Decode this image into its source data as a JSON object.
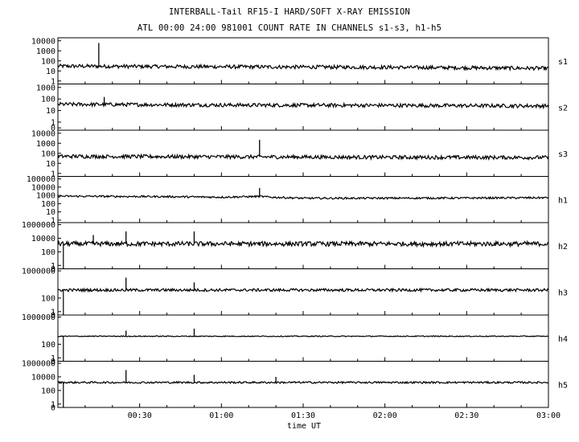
{
  "header": {
    "title": "INTERBALL-Tail RF15-I HARD/SOFT X-RAY EMISSION",
    "subtitle": "ATL 00:00 24:00 981001  COUNT RATE IN CHANNELS s1-s3, h1-h5"
  },
  "chart_data": {
    "type": "line",
    "xlabel": "time UT",
    "x_range_minutes": [
      0,
      180
    ],
    "x_ticks": [
      {
        "label": "00:30",
        "minutes": 30
      },
      {
        "label": "01:00",
        "minutes": 60
      },
      {
        "label": "01:30",
        "minutes": 90
      },
      {
        "label": "02:00",
        "minutes": 120
      },
      {
        "label": "02:30",
        "minutes": 150
      },
      {
        "label": "03:00",
        "minutes": 180
      }
    ],
    "y_scale": "log",
    "panels": [
      {
        "name": "s1",
        "ylim_decades": [
          -0.3,
          4.3
        ],
        "ytick_labels": [
          "10000",
          "1000",
          "100",
          "10",
          "1"
        ],
        "ytick_decades": [
          4,
          3,
          2,
          1,
          0
        ],
        "baseline": [
          [
            0,
            30
          ],
          [
            60,
            26
          ],
          [
            120,
            23
          ],
          [
            180,
            18
          ]
        ],
        "noise": 0.04,
        "spikes": [
          {
            "t": 15,
            "v": 6000
          }
        ]
      },
      {
        "name": "s2",
        "ylim_decades": [
          -0.7,
          3.3
        ],
        "ytick_labels": [
          "1000",
          "100",
          "10",
          "1",
          "0"
        ],
        "ytick_decades": [
          3,
          2,
          1,
          0,
          -0.5
        ],
        "baseline": [
          [
            0,
            35
          ],
          [
            60,
            30
          ],
          [
            120,
            28
          ],
          [
            180,
            25
          ]
        ],
        "noise": 0.04,
        "spikes": [
          {
            "t": 17,
            "v": 150
          }
        ]
      },
      {
        "name": "s3",
        "ylim_decades": [
          -0.3,
          4.3
        ],
        "ytick_labels": [
          "10000",
          "1000",
          "100",
          "10",
          "1"
        ],
        "ytick_decades": [
          4,
          3,
          2,
          1,
          0
        ],
        "baseline": [
          [
            0,
            50
          ],
          [
            60,
            45
          ],
          [
            120,
            40
          ],
          [
            180,
            38
          ]
        ],
        "noise": 0.04,
        "spikes": [
          {
            "t": 74,
            "v": 2200
          }
        ]
      },
      {
        "name": "h1",
        "ylim_decades": [
          -0.3,
          5.3
        ],
        "ytick_labels": [
          "100000",
          "10000",
          "1000",
          "100",
          "10",
          "1"
        ],
        "ytick_decades": [
          5,
          4,
          3,
          2,
          1,
          0
        ],
        "baseline": [
          [
            0,
            800
          ],
          [
            40,
            700
          ],
          [
            60,
            600
          ],
          [
            74,
            750
          ],
          [
            78,
            600
          ],
          [
            90,
            450
          ],
          [
            120,
            460
          ],
          [
            150,
            480
          ],
          [
            180,
            520
          ]
        ],
        "noise": 0.02,
        "spikes": [
          {
            "t": 74,
            "v": 8000
          }
        ]
      },
      {
        "name": "h2",
        "ylim_decades": [
          -0.5,
          6.3
        ],
        "ytick_labels": [
          "1000000",
          "10000",
          "100",
          "1",
          "0"
        ],
        "ytick_decades": [
          6,
          4,
          2,
          0,
          -0.5
        ],
        "baseline": [
          [
            0,
            1500
          ],
          [
            180,
            1500
          ]
        ],
        "noise": 0.05,
        "spikes": [
          {
            "t": 13,
            "v": 30000
          },
          {
            "t": 25,
            "v": 100000
          },
          {
            "t": 50,
            "v": 100000
          }
        ]
      },
      {
        "name": "h3",
        "ylim_decades": [
          -0.5,
          6.3
        ],
        "ytick_labels": [
          "1000000",
          "100",
          "1",
          "0"
        ],
        "ytick_decades": [
          6,
          2,
          0,
          -0.5
        ],
        "baseline": [
          [
            0,
            1500
          ],
          [
            180,
            1500
          ]
        ],
        "noise": 0.03,
        "spikes": [
          {
            "t": 25,
            "v": 100000
          },
          {
            "t": 50,
            "v": 20000
          }
        ]
      },
      {
        "name": "h4",
        "ylim_decades": [
          -0.5,
          6.3
        ],
        "ytick_labels": [
          "1000000",
          "100",
          "1",
          "0"
        ],
        "ytick_decades": [
          6,
          2,
          0,
          -0.5
        ],
        "baseline": [
          [
            0,
            1500
          ],
          [
            180,
            1500
          ]
        ],
        "noise": 0.01,
        "spikes": [
          {
            "t": 25,
            "v": 10000
          },
          {
            "t": 50,
            "v": 20000
          }
        ]
      },
      {
        "name": "h5",
        "ylim_decades": [
          -0.5,
          6.3
        ],
        "ytick_labels": [
          "1000000",
          "10000",
          "100",
          "1",
          "0"
        ],
        "ytick_decades": [
          6,
          4,
          2,
          0,
          -0.5
        ],
        "baseline": [
          [
            0,
            1500
          ],
          [
            180,
            1500
          ]
        ],
        "noise": 0.02,
        "spikes": [
          {
            "t": 25,
            "v": 100000
          },
          {
            "t": 50,
            "v": 20000
          },
          {
            "t": 80,
            "v": 10000
          }
        ]
      }
    ]
  }
}
